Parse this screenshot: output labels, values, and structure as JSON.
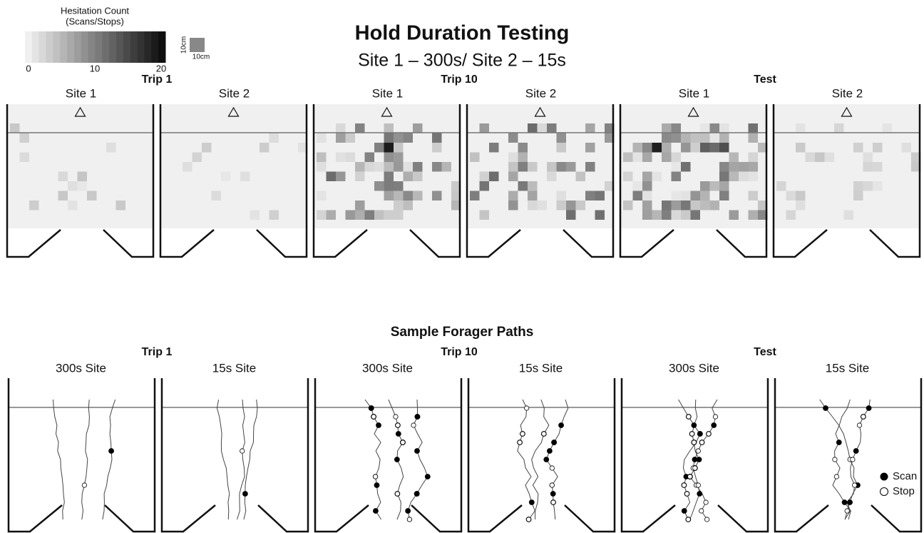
{
  "colorbar": {
    "title": [
      "Hesitation Count",
      "(Scans/Stops)"
    ],
    "ticks": [
      0,
      10,
      20
    ],
    "scale_label": [
      "10cm",
      "10cm"
    ]
  },
  "title": "Hold Duration Testing",
  "subtitle": "Site 1 – 300s/ Site 2 – 15s",
  "heatmaps": {
    "groups": [
      "Trip 1",
      "Trip 10",
      "Test"
    ],
    "panels": [
      "Site 1",
      "Site 2",
      "Site 1",
      "Site 2",
      "Site 1",
      "Site 2"
    ]
  },
  "paths": {
    "title": "Sample Forager Paths",
    "groups": [
      "Trip 1",
      "Trip 10",
      "Test"
    ],
    "panels": [
      "300s Site",
      "15s Site",
      "300s Site",
      "15s Site",
      "300s Site",
      "15s Site"
    ]
  },
  "legend": [
    "Scan",
    "Stop"
  ]
}
